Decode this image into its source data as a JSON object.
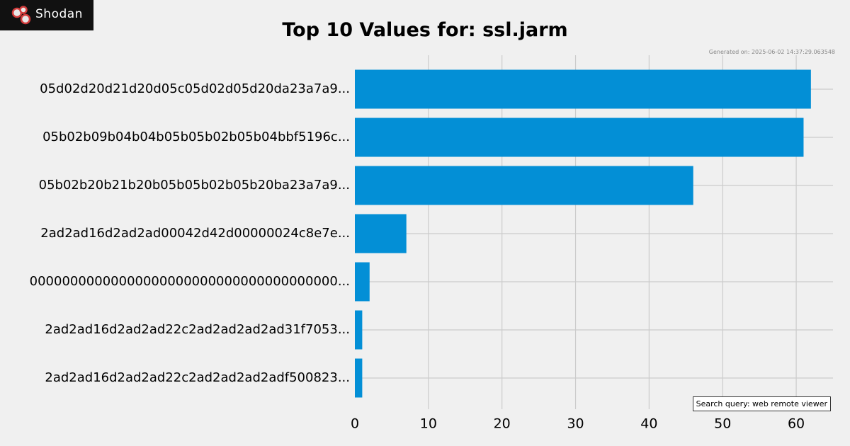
{
  "logo": {
    "text": "Shodan"
  },
  "generated": "Generated on: 2025-06-02 14:37:29.063548",
  "search_query": "Search query: web remote viewer",
  "colors": {
    "bar": "#038fd6",
    "grid": "#cbcbcb",
    "background": "#f0f0f0"
  },
  "chart_data": {
    "type": "bar",
    "orientation": "horizontal",
    "title": "Top 10 Values for: ssl.jarm",
    "xlabel": "",
    "ylabel": "",
    "categories": [
      "05d02d20d21d20d05c05d02d05d20da23a7a9...",
      "05b02b09b04b04b05b05b02b05b04bbf5196c...",
      "05b02b20b21b20b05b05b02b05b20ba23a7a9...",
      "2ad2ad16d2ad2ad00042d42d00000024c8e7e...",
      "00000000000000000000000000000000000000...",
      "2ad2ad16d2ad2ad22c2ad2ad2ad2ad31f7053...",
      "2ad2ad16d2ad2ad22c2ad2ad2ad2adf500823..."
    ],
    "values": [
      62,
      61,
      46,
      7,
      2,
      1,
      1
    ],
    "xlim": [
      0,
      65
    ],
    "xticks": [
      0,
      10,
      20,
      30,
      40,
      50,
      60
    ],
    "grid": true
  }
}
